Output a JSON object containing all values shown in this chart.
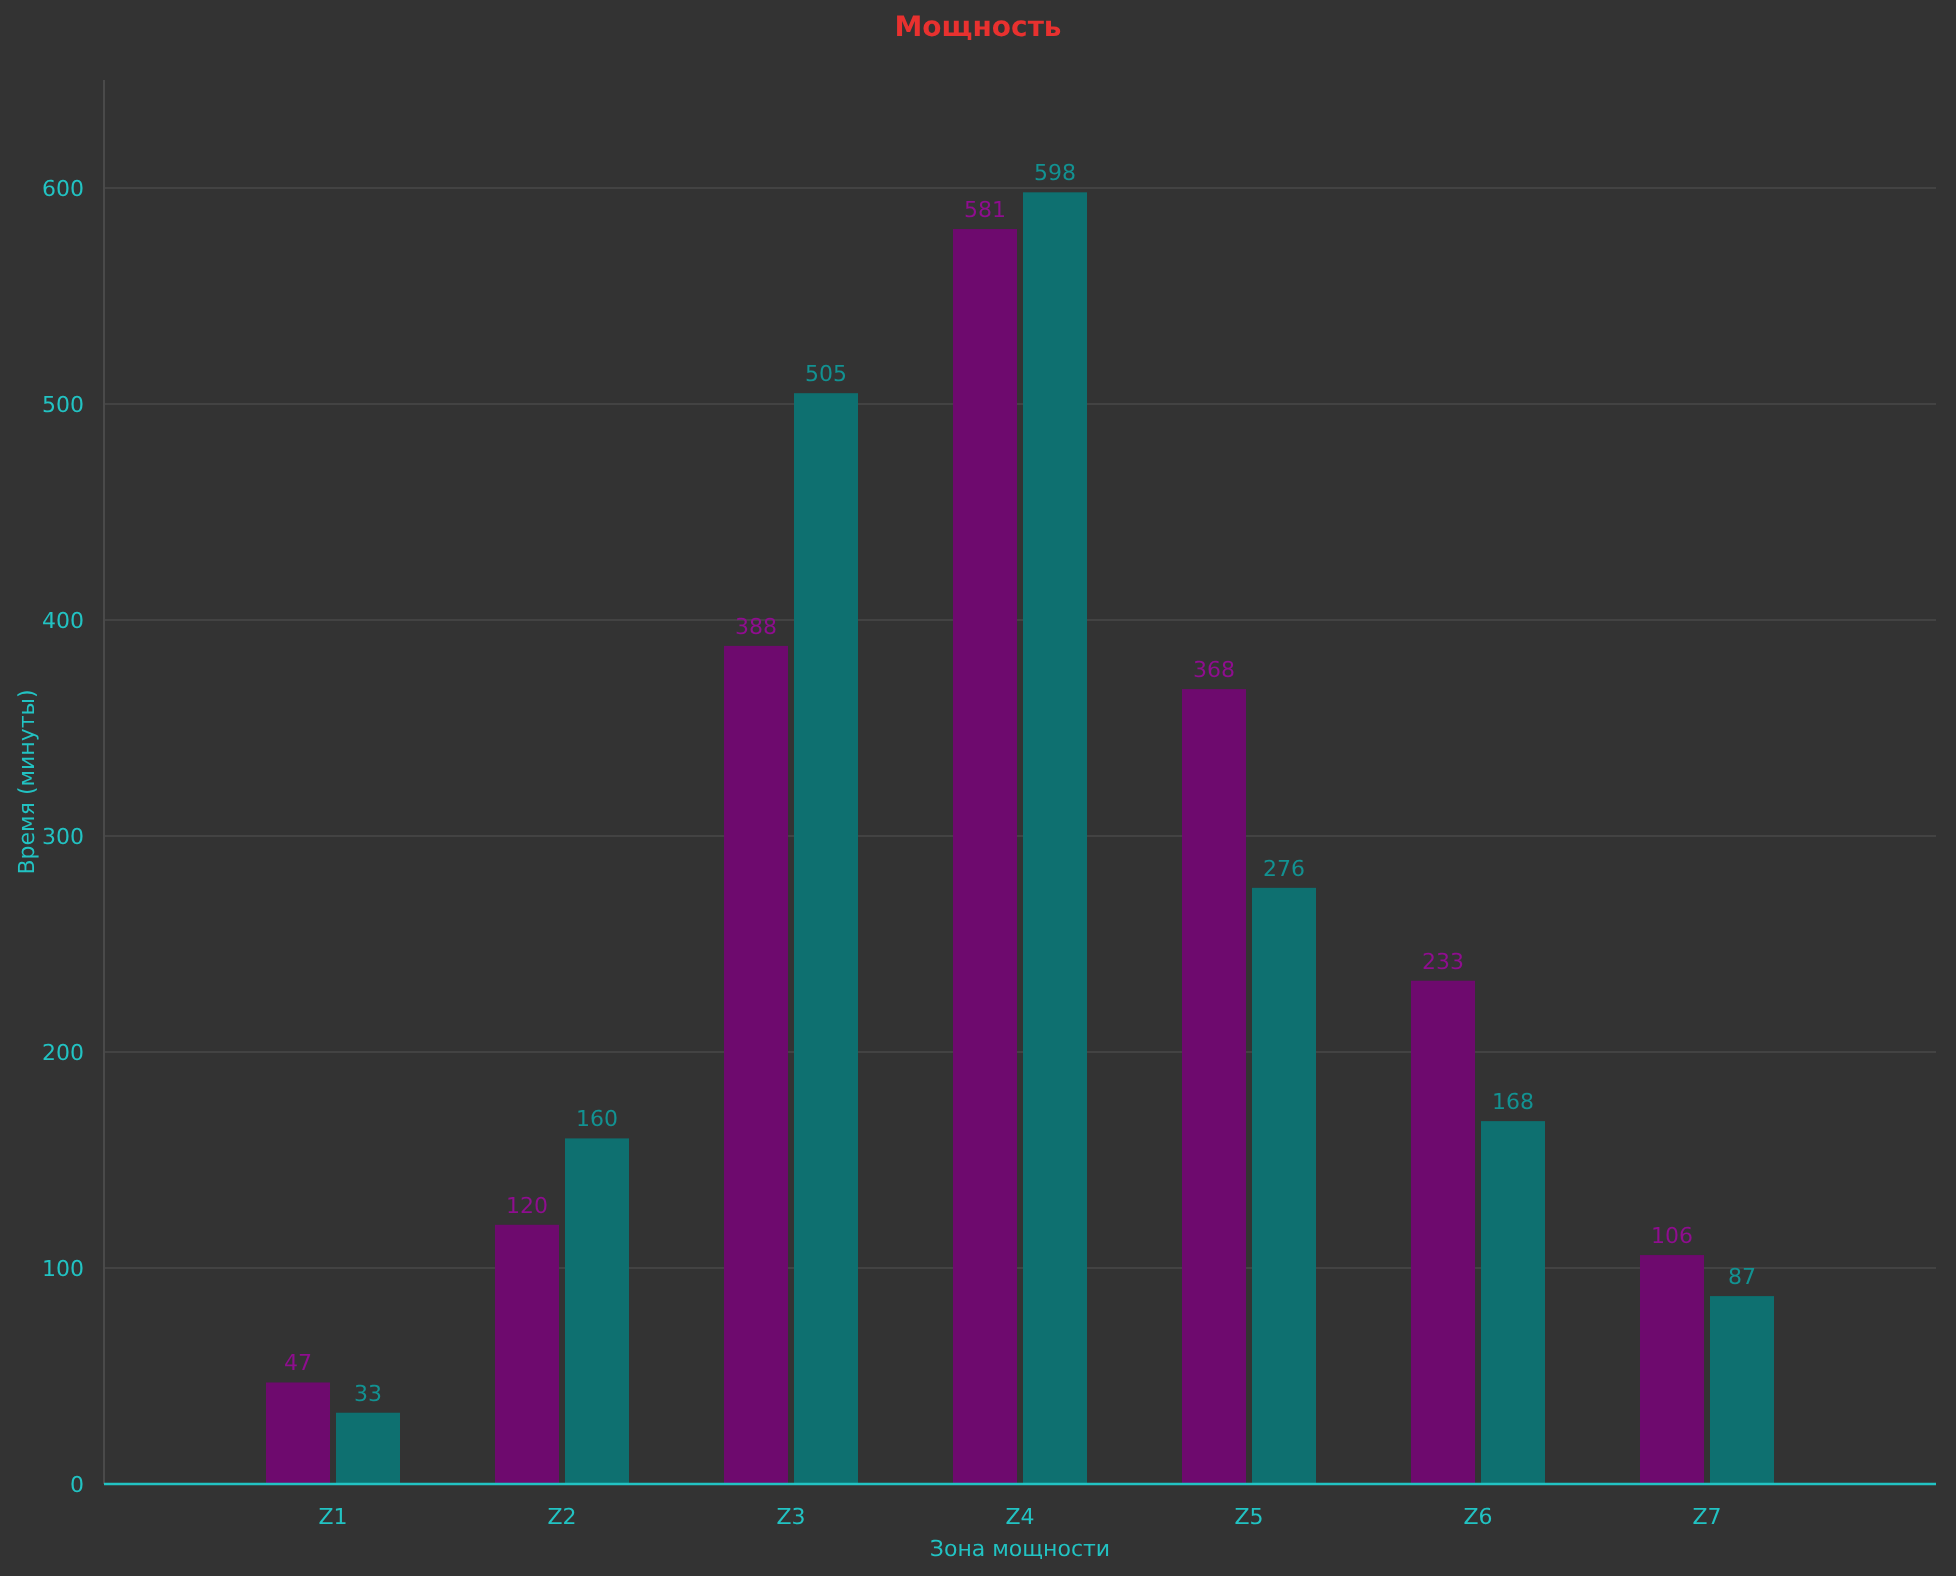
{
  "chart_data": {
    "type": "bar",
    "title": "Мощность",
    "xlabel": "Зона мощности",
    "ylabel": "Время (минуты)",
    "categories": [
      "Z1",
      "Z2",
      "Z3",
      "Z4",
      "Z5",
      "Z6",
      "Z7"
    ],
    "series": [
      {
        "color": "#6e0a6e",
        "values": [
          47,
          120,
          388,
          581,
          368,
          233,
          106
        ]
      },
      {
        "color": "#0e7070",
        "values": [
          33,
          160,
          505,
          598,
          276,
          168,
          87
        ]
      }
    ],
    "ylim": [
      0,
      650
    ],
    "yticks": [
      0,
      100,
      200,
      300,
      400,
      500,
      600
    ],
    "grid": "y",
    "data_labels": true
  }
}
